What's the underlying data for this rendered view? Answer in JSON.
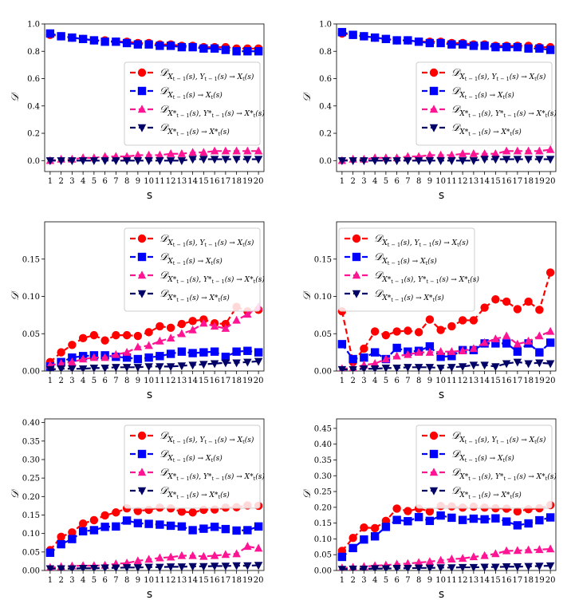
{
  "figure": {
    "x_label": "s",
    "y_label": "𝒟",
    "legend": {
      "placement": "upper-right",
      "entries": [
        {
          "main": "𝒟",
          "sub": "X",
          "subsub": "t − 1",
          "sub2": "(s), Y",
          "subsub2": "t − 1",
          "sub3": "(s) → X",
          "subsub3": "t",
          "sub4": "(s)"
        },
        {
          "main": "𝒟",
          "sub": "X",
          "subsub": "t − 1",
          "sub3": "(s) → X",
          "subsub3": "t",
          "sub4": "(s)"
        },
        {
          "main": "𝒟",
          "sub": "X*",
          "subsub": "t − 1",
          "sub2": "(s), Y*",
          "subsub2": "t − 1",
          "sub3": "(s) → X*",
          "subsub3": "t",
          "sub4": "(s)"
        },
        {
          "main": "𝒟",
          "sub": "X*",
          "subsub": "t − 1",
          "sub3": "(s) → X*",
          "subsub3": "t",
          "sub4": "(s)"
        }
      ]
    }
  },
  "chart_data": [
    {
      "type": "line",
      "x": [
        1,
        2,
        3,
        4,
        5,
        6,
        7,
        8,
        9,
        10,
        11,
        12,
        13,
        14,
        15,
        16,
        17,
        18,
        19,
        20
      ],
      "ylim": [
        -0.08,
        1.0
      ],
      "yticks": [
        0.0,
        0.2,
        0.4,
        0.6,
        0.8,
        1.0
      ],
      "ytick_labels": [
        "0.0",
        "0.2",
        "0.4",
        "0.6",
        "0.8",
        "1.0"
      ],
      "xlabel": "s",
      "ylabel": "𝒟",
      "series": [
        {
          "color": "#ff0000",
          "marker": "circle",
          "values": [
            0.92,
            0.91,
            0.9,
            0.89,
            0.88,
            0.88,
            0.87,
            0.87,
            0.86,
            0.86,
            0.85,
            0.85,
            0.84,
            0.84,
            0.83,
            0.83,
            0.83,
            0.82,
            0.82,
            0.82
          ]
        },
        {
          "color": "#0000ff",
          "marker": "square",
          "values": [
            0.93,
            0.91,
            0.9,
            0.89,
            0.88,
            0.87,
            0.87,
            0.86,
            0.85,
            0.85,
            0.84,
            0.84,
            0.83,
            0.83,
            0.82,
            0.82,
            0.81,
            0.8,
            0.8,
            0.8
          ]
        },
        {
          "color": "#ff1493",
          "marker": "triangle-up",
          "values": [
            0.0,
            0.01,
            0.01,
            0.02,
            0.02,
            0.03,
            0.03,
            0.03,
            0.04,
            0.04,
            0.04,
            0.05,
            0.05,
            0.06,
            0.06,
            0.07,
            0.07,
            0.07,
            0.07,
            0.07
          ]
        },
        {
          "color": "#000066",
          "marker": "triangle-down",
          "values": [
            0.0,
            0.0,
            0.0,
            0.0,
            0.0,
            0.0,
            0.0,
            0.0,
            0.0,
            0.0,
            0.0,
            0.0,
            0.0,
            0.01,
            0.01,
            0.01,
            0.01,
            0.01,
            0.01,
            0.01
          ]
        }
      ]
    },
    {
      "type": "line",
      "x": [
        1,
        2,
        3,
        4,
        5,
        6,
        7,
        8,
        9,
        10,
        11,
        12,
        13,
        14,
        15,
        16,
        17,
        18,
        19,
        20
      ],
      "ylim": [
        -0.08,
        1.0
      ],
      "yticks": [
        0.0,
        0.2,
        0.4,
        0.6,
        0.8,
        1.0
      ],
      "ytick_labels": [
        "0.0",
        "0.2",
        "0.4",
        "0.6",
        "0.8",
        "1.0"
      ],
      "xlabel": "s",
      "ylabel": "𝒟",
      "series": [
        {
          "color": "#ff0000",
          "marker": "circle",
          "values": [
            0.93,
            0.92,
            0.91,
            0.9,
            0.89,
            0.88,
            0.88,
            0.87,
            0.87,
            0.87,
            0.86,
            0.86,
            0.85,
            0.85,
            0.84,
            0.84,
            0.84,
            0.84,
            0.83,
            0.83
          ]
        },
        {
          "color": "#0000ff",
          "marker": "square",
          "values": [
            0.94,
            0.92,
            0.91,
            0.9,
            0.89,
            0.88,
            0.88,
            0.87,
            0.86,
            0.86,
            0.85,
            0.85,
            0.84,
            0.84,
            0.83,
            0.83,
            0.83,
            0.82,
            0.82,
            0.81
          ]
        },
        {
          "color": "#ff1493",
          "marker": "triangle-up",
          "values": [
            0.0,
            0.01,
            0.01,
            0.02,
            0.02,
            0.02,
            0.03,
            0.03,
            0.04,
            0.04,
            0.04,
            0.05,
            0.05,
            0.05,
            0.05,
            0.07,
            0.07,
            0.07,
            0.07,
            0.08
          ]
        },
        {
          "color": "#000066",
          "marker": "triangle-down",
          "values": [
            0.0,
            0.0,
            0.0,
            0.0,
            0.0,
            0.0,
            0.0,
            0.0,
            0.0,
            0.0,
            0.0,
            0.0,
            0.0,
            0.01,
            0.01,
            0.01,
            0.01,
            0.01,
            0.01,
            0.01
          ]
        }
      ]
    },
    {
      "type": "line",
      "x": [
        1,
        2,
        3,
        4,
        5,
        6,
        7,
        8,
        9,
        10,
        11,
        12,
        13,
        14,
        15,
        16,
        17,
        18,
        19,
        20
      ],
      "ylim": [
        0.0,
        0.2
      ],
      "yticks": [
        0.0,
        0.05,
        0.1,
        0.15
      ],
      "ytick_labels": [
        "0.00",
        "0.05",
        "0.10",
        "0.15"
      ],
      "xlabel": "s",
      "ylabel": "𝒟",
      "series": [
        {
          "color": "#ff0000",
          "marker": "circle",
          "values": [
            0.012,
            0.025,
            0.035,
            0.044,
            0.048,
            0.041,
            0.048,
            0.048,
            0.047,
            0.052,
            0.06,
            0.058,
            0.063,
            0.067,
            0.069,
            0.064,
            0.063,
            0.086,
            0.08,
            0.082
          ]
        },
        {
          "color": "#0000ff",
          "marker": "square",
          "values": [
            0.006,
            0.012,
            0.018,
            0.02,
            0.021,
            0.021,
            0.019,
            0.018,
            0.016,
            0.018,
            0.02,
            0.023,
            0.026,
            0.024,
            0.025,
            0.026,
            0.019,
            0.026,
            0.027,
            0.025
          ]
        },
        {
          "color": "#ff1493",
          "marker": "triangle-up",
          "values": [
            0.008,
            0.01,
            0.012,
            0.016,
            0.018,
            0.018,
            0.022,
            0.025,
            0.032,
            0.034,
            0.04,
            0.044,
            0.05,
            0.055,
            0.064,
            0.06,
            0.057,
            0.068,
            0.076,
            0.086
          ]
        },
        {
          "color": "#000066",
          "marker": "triangle-down",
          "values": [
            0.002,
            0.003,
            0.003,
            0.003,
            0.004,
            0.004,
            0.005,
            0.005,
            0.005,
            0.006,
            0.006,
            0.006,
            0.007,
            0.008,
            0.009,
            0.01,
            0.011,
            0.011,
            0.012,
            0.013
          ]
        }
      ]
    },
    {
      "type": "line",
      "x": [
        1,
        2,
        3,
        4,
        5,
        6,
        7,
        8,
        9,
        10,
        11,
        12,
        13,
        14,
        15,
        16,
        17,
        18,
        19,
        20
      ],
      "ylim": [
        0.0,
        0.2
      ],
      "yticks": [
        0.0,
        0.05,
        0.1,
        0.15
      ],
      "ytick_labels": [
        "0.00",
        "0.05",
        "0.10",
        "0.15"
      ],
      "xlabel": "s",
      "ylabel": "𝒟",
      "series": [
        {
          "color": "#ff0000",
          "marker": "circle",
          "values": [
            0.08,
            0.012,
            0.03,
            0.053,
            0.048,
            0.053,
            0.054,
            0.052,
            0.069,
            0.055,
            0.06,
            0.068,
            0.068,
            0.085,
            0.096,
            0.093,
            0.083,
            0.093,
            0.082,
            0.132
          ]
        },
        {
          "color": "#0000ff",
          "marker": "square",
          "values": [
            0.036,
            0.016,
            0.018,
            0.025,
            0.016,
            0.031,
            0.026,
            0.027,
            0.033,
            0.019,
            0.02,
            0.028,
            0.028,
            0.037,
            0.037,
            0.037,
            0.026,
            0.037,
            0.025,
            0.038
          ]
        },
        {
          "color": "#ff1493",
          "marker": "triangle-up",
          "values": [
            0.003,
            0.004,
            0.008,
            0.01,
            0.016,
            0.02,
            0.022,
            0.025,
            0.025,
            0.026,
            0.026,
            0.027,
            0.03,
            0.038,
            0.043,
            0.047,
            0.036,
            0.04,
            0.047,
            0.053
          ]
        },
        {
          "color": "#000066",
          "marker": "triangle-down",
          "values": [
            0.002,
            0.002,
            0.003,
            0.003,
            0.004,
            0.004,
            0.005,
            0.005,
            0.005,
            0.004,
            0.005,
            0.006,
            0.008,
            0.008,
            0.006,
            0.01,
            0.012,
            0.01,
            0.011,
            0.01
          ]
        }
      ]
    },
    {
      "type": "line",
      "x": [
        1,
        2,
        3,
        4,
        5,
        6,
        7,
        8,
        9,
        10,
        11,
        12,
        13,
        14,
        15,
        16,
        17,
        18,
        19,
        20
      ],
      "ylim": [
        0.0,
        0.41
      ],
      "yticks": [
        0.0,
        0.05,
        0.1,
        0.15,
        0.2,
        0.25,
        0.3,
        0.35,
        0.4
      ],
      "ytick_labels": [
        "0.00",
        "0.05",
        "0.10",
        "0.15",
        "0.20",
        "0.25",
        "0.30",
        "0.35",
        "0.40"
      ],
      "xlabel": "s",
      "ylabel": "𝒟",
      "series": [
        {
          "color": "#ff0000",
          "marker": "circle",
          "values": [
            0.055,
            0.091,
            0.103,
            0.127,
            0.136,
            0.149,
            0.157,
            0.168,
            0.161,
            0.164,
            0.17,
            0.168,
            0.159,
            0.157,
            0.164,
            0.165,
            0.17,
            0.171,
            0.176,
            0.175
          ]
        },
        {
          "color": "#0000ff",
          "marker": "square",
          "values": [
            0.048,
            0.071,
            0.085,
            0.106,
            0.109,
            0.118,
            0.119,
            0.135,
            0.128,
            0.126,
            0.124,
            0.121,
            0.119,
            0.109,
            0.113,
            0.118,
            0.112,
            0.108,
            0.109,
            0.119
          ]
        },
        {
          "color": "#ff1493",
          "marker": "triangle-up",
          "values": [
            0.008,
            0.01,
            0.012,
            0.013,
            0.013,
            0.014,
            0.018,
            0.02,
            0.026,
            0.03,
            0.034,
            0.036,
            0.04,
            0.04,
            0.038,
            0.04,
            0.043,
            0.045,
            0.065,
            0.06
          ]
        },
        {
          "color": "#000066",
          "marker": "triangle-down",
          "values": [
            0.005,
            0.005,
            0.005,
            0.006,
            0.006,
            0.007,
            0.007,
            0.008,
            0.008,
            0.009,
            0.009,
            0.01,
            0.01,
            0.011,
            0.011,
            0.012,
            0.012,
            0.013,
            0.013,
            0.014
          ]
        }
      ]
    },
    {
      "type": "line",
      "x": [
        1,
        2,
        3,
        4,
        5,
        6,
        7,
        8,
        9,
        10,
        11,
        12,
        13,
        14,
        15,
        16,
        17,
        18,
        19,
        20
      ],
      "ylim": [
        0.0,
        0.48
      ],
      "yticks": [
        0.0,
        0.05,
        0.1,
        0.15,
        0.2,
        0.25,
        0.3,
        0.35,
        0.4,
        0.45
      ],
      "ytick_labels": [
        "0.00",
        "0.05",
        "0.10",
        "0.15",
        "0.20",
        "0.25",
        "0.30",
        "0.35",
        "0.40",
        "0.45"
      ],
      "xlabel": "s",
      "ylabel": "𝒟",
      "series": [
        {
          "color": "#ff0000",
          "marker": "circle",
          "values": [
            0.062,
            0.103,
            0.136,
            0.134,
            0.157,
            0.196,
            0.188,
            0.196,
            0.187,
            0.204,
            0.203,
            0.199,
            0.202,
            0.199,
            0.197,
            0.196,
            0.187,
            0.194,
            0.197,
            0.207
          ]
        },
        {
          "color": "#0000ff",
          "marker": "square",
          "values": [
            0.043,
            0.071,
            0.098,
            0.108,
            0.138,
            0.16,
            0.156,
            0.169,
            0.157,
            0.174,
            0.167,
            0.16,
            0.164,
            0.162,
            0.165,
            0.155,
            0.143,
            0.149,
            0.159,
            0.168
          ]
        },
        {
          "color": "#ff1493",
          "marker": "triangle-up",
          "values": [
            0.008,
            0.01,
            0.012,
            0.015,
            0.017,
            0.02,
            0.022,
            0.025,
            0.028,
            0.032,
            0.036,
            0.038,
            0.043,
            0.047,
            0.053,
            0.062,
            0.063,
            0.065,
            0.066,
            0.068
          ]
        },
        {
          "color": "#000066",
          "marker": "triangle-down",
          "values": [
            0.004,
            0.005,
            0.005,
            0.006,
            0.006,
            0.007,
            0.007,
            0.008,
            0.008,
            0.009,
            0.009,
            0.01,
            0.01,
            0.011,
            0.011,
            0.012,
            0.012,
            0.013,
            0.014,
            0.015
          ]
        }
      ]
    }
  ]
}
